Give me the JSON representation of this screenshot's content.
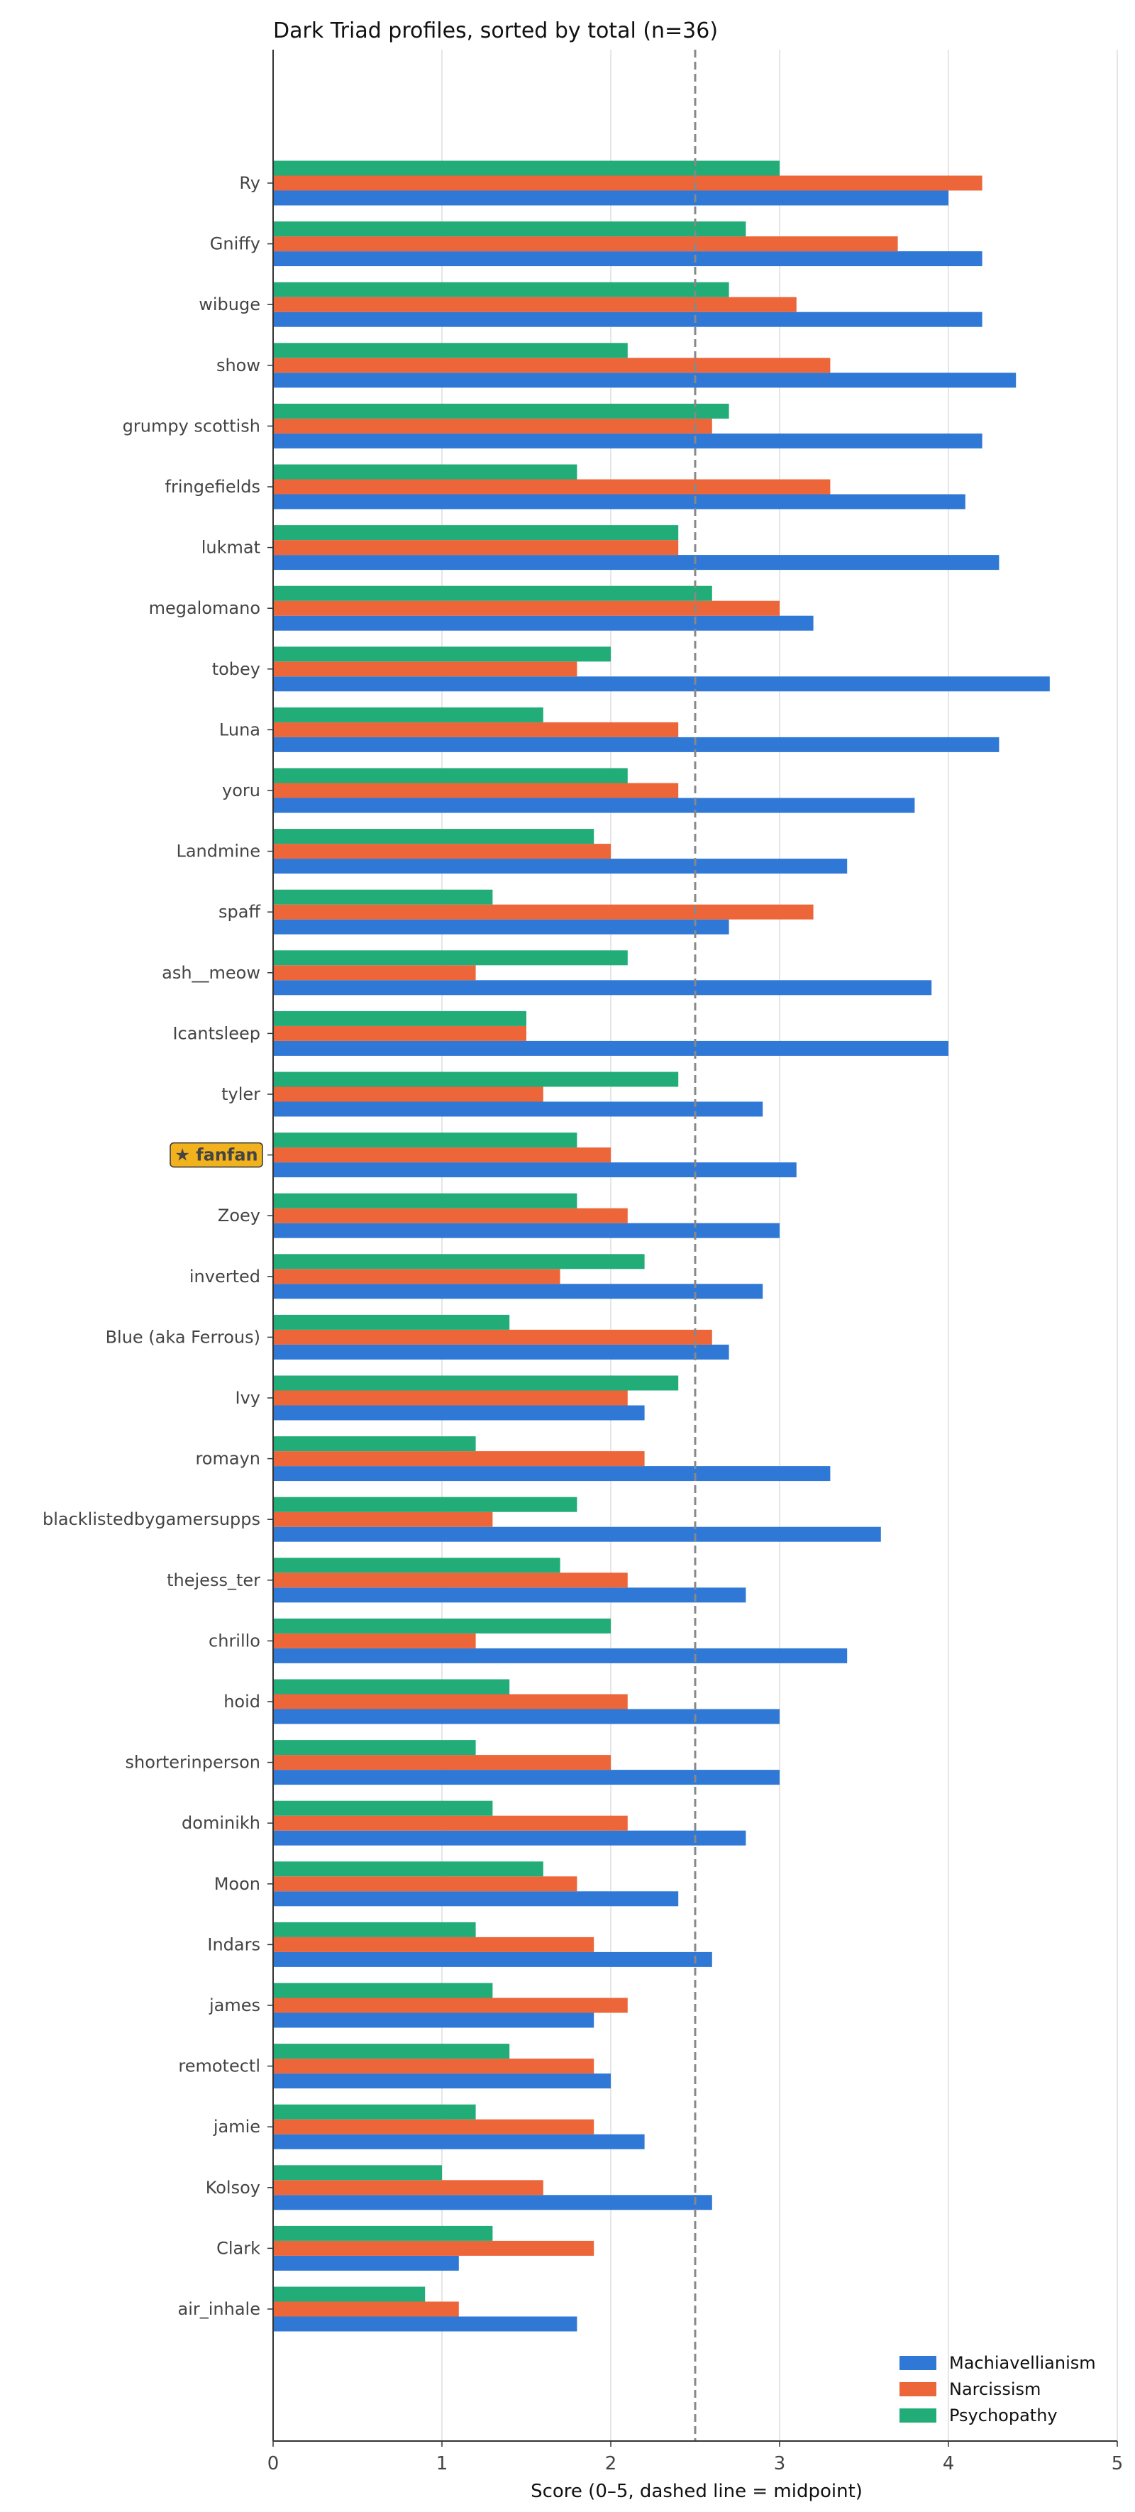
{
  "chart_data": {
    "type": "bar",
    "orientation": "horizontal",
    "title": "Dark Triad profiles, sorted by total (n=36)",
    "xlabel": "Score (0–5, dashed line = midpoint)",
    "xlim": [
      0,
      5
    ],
    "xticks": [
      "0",
      "1",
      "2",
      "3",
      "4",
      "5"
    ],
    "reference_line": 2.5,
    "grid": "vertical",
    "legend_position": "bottom-right",
    "categories": [
      "Ry",
      "Gniffy",
      "wibuge",
      "show",
      "grumpy scottish",
      "fringefields",
      "lukmat",
      "megalomano",
      "tobey",
      "Luna",
      "yoru",
      "Landmine",
      "spaff",
      "ash__meow",
      "Icantsleep",
      "tyler",
      "fanfan",
      "Zoey",
      "inverted",
      "Blue (aka Ferrous)",
      "Ivy",
      "romayn",
      "blacklistedbygamersupps",
      "thejess_ter",
      "chrillo",
      "hoid",
      "shorterinperson",
      "dominikh",
      "Moon",
      "Indars",
      "james",
      "remotectl",
      "jamie",
      "Kolsoy",
      "Clark",
      "air_inhale"
    ],
    "highlight": {
      "index": 16,
      "label": "★ fanfan",
      "color": "#f2b21d"
    },
    "series": [
      {
        "name": "Machiavellianism",
        "color": "#2f78d6",
        "values": [
          4.0,
          4.2,
          4.2,
          4.4,
          4.2,
          4.1,
          4.3,
          3.2,
          4.6,
          4.3,
          3.8,
          3.4,
          2.7,
          3.9,
          4.0,
          2.9,
          3.1,
          3.0,
          2.9,
          2.7,
          2.2,
          3.3,
          3.6,
          2.8,
          3.4,
          3.0,
          3.0,
          2.8,
          2.4,
          2.6,
          1.9,
          2.0,
          2.2,
          2.6,
          1.1,
          1.8
        ]
      },
      {
        "name": "Narcissism",
        "color": "#ec6639",
        "values": [
          4.2,
          3.7,
          3.1,
          3.3,
          2.6,
          3.3,
          2.4,
          3.0,
          1.8,
          2.4,
          2.4,
          2.0,
          3.2,
          1.2,
          1.5,
          1.6,
          2.0,
          2.1,
          1.7,
          2.6,
          2.1,
          2.2,
          1.3,
          2.1,
          1.2,
          2.1,
          2.0,
          2.1,
          1.8,
          1.9,
          2.1,
          1.9,
          1.9,
          1.6,
          1.9,
          1.1
        ]
      },
      {
        "name": "Psychopathy",
        "color": "#21ac78",
        "values": [
          3.0,
          2.8,
          2.7,
          2.1,
          2.7,
          1.8,
          2.4,
          2.6,
          2.0,
          1.6,
          2.1,
          1.9,
          1.3,
          2.1,
          1.5,
          2.4,
          1.8,
          1.8,
          2.2,
          1.4,
          2.4,
          1.2,
          1.8,
          1.7,
          2.0,
          1.4,
          1.2,
          1.3,
          1.6,
          1.2,
          1.3,
          1.4,
          1.2,
          1.0,
          1.3,
          0.9
        ]
      }
    ]
  }
}
